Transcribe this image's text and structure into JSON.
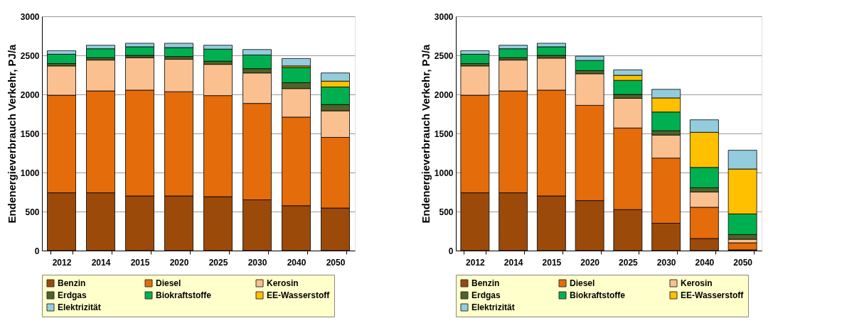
{
  "chart_data": [
    {
      "type": "bar",
      "stacked": true,
      "ylabel": "Endenergieverbrauch Verkehr, PJ/a",
      "categories": [
        "2012",
        "2014",
        "2015",
        "2020",
        "2025",
        "2030",
        "2040",
        "2050"
      ],
      "ylim": [
        0,
        3000
      ],
      "yticks": [
        0,
        500,
        1000,
        1500,
        2000,
        2500,
        3000
      ],
      "grid": "y",
      "legend": "bottom",
      "series": [
        {
          "name": "Benzin",
          "color": "#9b4a0a",
          "values": [
            740,
            740,
            700,
            700,
            690,
            650,
            575,
            545
          ]
        },
        {
          "name": "Diesel",
          "color": "#e46c0a",
          "values": [
            1250,
            1305,
            1355,
            1335,
            1295,
            1235,
            1135,
            905
          ]
        },
        {
          "name": "Kerosin",
          "color": "#fac090",
          "values": [
            375,
            395,
            415,
            415,
            400,
            390,
            365,
            340
          ]
        },
        {
          "name": "Erdgas",
          "color": "#4f6228",
          "values": [
            30,
            30,
            30,
            35,
            40,
            55,
            75,
            80
          ]
        },
        {
          "name": "Biokraftstoffe",
          "color": "#00b050",
          "values": [
            120,
            115,
            110,
            115,
            155,
            175,
            195,
            225
          ]
        },
        {
          "name": "EE-Wasserstoff",
          "color": "#ffc000",
          "values": [
            0,
            0,
            0,
            0,
            0,
            0,
            20,
            75
          ]
        },
        {
          "name": "Elektrizität",
          "color": "#93cddd",
          "values": [
            45,
            45,
            45,
            55,
            50,
            70,
            95,
            105
          ]
        }
      ]
    },
    {
      "type": "bar",
      "stacked": true,
      "ylabel": "Endenergieverbrauch Verkehr, PJ/a",
      "categories": [
        "2012",
        "2014",
        "2015",
        "2020",
        "2025",
        "2030",
        "2040",
        "2050"
      ],
      "ylim": [
        0,
        3000
      ],
      "yticks": [
        0,
        500,
        1000,
        1500,
        2000,
        2500,
        3000
      ],
      "grid": "y",
      "legend": "bottom",
      "series": [
        {
          "name": "Benzin",
          "color": "#9b4a0a",
          "values": [
            740,
            740,
            700,
            640,
            525,
            350,
            155,
            10
          ]
        },
        {
          "name": "Diesel",
          "color": "#e46c0a",
          "values": [
            1250,
            1305,
            1355,
            1220,
            1045,
            835,
            400,
            90
          ]
        },
        {
          "name": "Kerosin",
          "color": "#fac090",
          "values": [
            375,
            395,
            410,
            405,
            380,
            295,
            195,
            45
          ]
        },
        {
          "name": "Erdgas",
          "color": "#4f6228",
          "values": [
            30,
            30,
            35,
            40,
            50,
            55,
            55,
            60
          ]
        },
        {
          "name": "Biokraftstoffe",
          "color": "#00b050",
          "values": [
            120,
            115,
            110,
            130,
            180,
            240,
            260,
            265
          ]
        },
        {
          "name": "EE-Wasserstoff",
          "color": "#ffc000",
          "values": [
            0,
            0,
            0,
            0,
            65,
            180,
            450,
            575
          ]
        },
        {
          "name": "Elektrizität",
          "color": "#93cddd",
          "values": [
            45,
            45,
            45,
            55,
            70,
            110,
            160,
            240
          ]
        }
      ]
    }
  ]
}
